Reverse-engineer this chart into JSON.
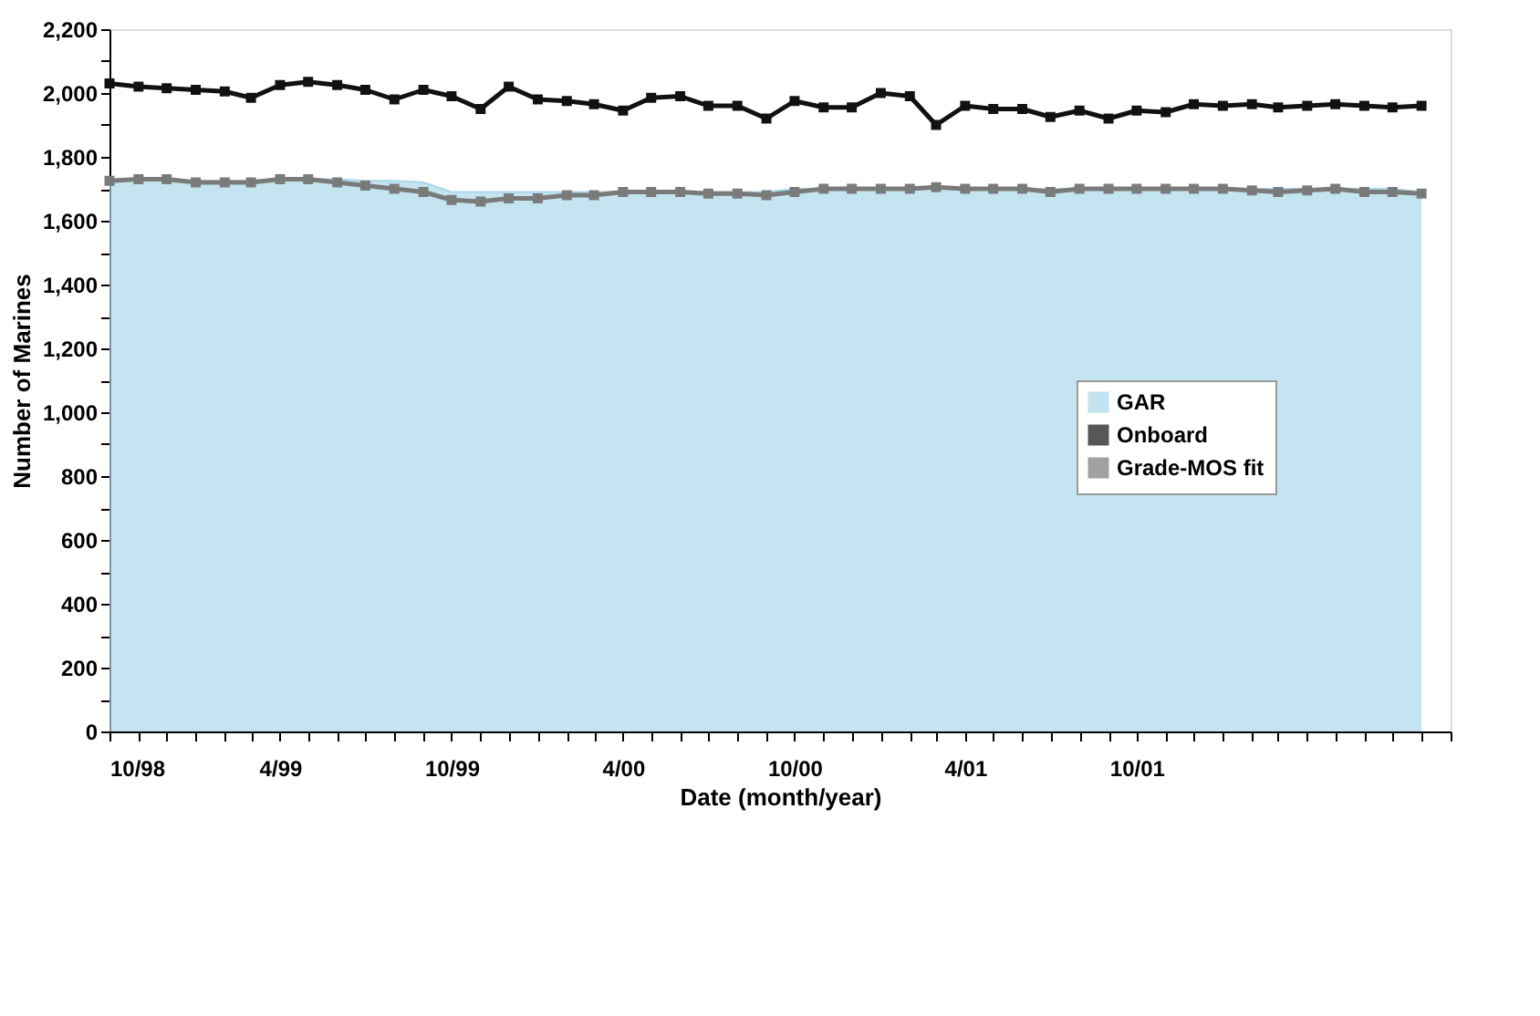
{
  "chart_data": {
    "type": "line",
    "xlabel": "Date (month/year)",
    "ylabel": "Number of Marines",
    "x": [
      "1998-10",
      "1998-11",
      "1998-12",
      "1999-01",
      "1999-02",
      "1999-03",
      "1999-04",
      "1999-05",
      "1999-06",
      "1999-07",
      "1999-08",
      "1999-09",
      "1999-10",
      "1999-11",
      "1999-12",
      "2000-01",
      "2000-02",
      "2000-03",
      "2000-04",
      "2000-05",
      "2000-06",
      "2000-07",
      "2000-08",
      "2000-09",
      "2000-10",
      "2000-11",
      "2000-12",
      "2001-01",
      "2001-02",
      "2001-03",
      "2001-04",
      "2001-05",
      "2001-06",
      "2001-07",
      "2001-08",
      "2001-09",
      "2001-10",
      "2001-11",
      "2001-12",
      "2002-01",
      "2002-02",
      "2002-03",
      "2002-04",
      "2002-05",
      "2002-06",
      "2002-07",
      "2002-08"
    ],
    "series": [
      {
        "name": "GAR",
        "type": "area",
        "color": "#a9d8ea",
        "values": [
          1720,
          1730,
          1730,
          1725,
          1725,
          1725,
          1730,
          1730,
          1730,
          1725,
          1725,
          1720,
          1690,
          1690,
          1690,
          1690,
          1690,
          1690,
          1690,
          1690,
          1690,
          1690,
          1690,
          1690,
          1700,
          1700,
          1700,
          1700,
          1700,
          1700,
          1700,
          1700,
          1700,
          1700,
          1700,
          1700,
          1700,
          1700,
          1700,
          1700,
          1700,
          1700,
          1700,
          1700,
          1700,
          1700,
          1690
        ]
      },
      {
        "name": "Onboard",
        "type": "line",
        "color": "#111111",
        "marker": "square",
        "values": [
          2030,
          2020,
          2015,
          2010,
          2005,
          1985,
          2025,
          2035,
          2025,
          2010,
          1980,
          2010,
          1990,
          1950,
          2020,
          1980,
          1975,
          1965,
          1945,
          1985,
          1990,
          1960,
          1960,
          1920,
          1975,
          1955,
          1955,
          2000,
          1990,
          1900,
          1960,
          1950,
          1950,
          1925,
          1945,
          1920,
          1945,
          1940,
          1965,
          1960,
          1965,
          1955,
          1960,
          1965,
          1960,
          1955,
          1960
        ]
      },
      {
        "name": "Grade-MOS fit",
        "type": "line",
        "color": "#7a7a7a",
        "marker": "square",
        "values": [
          1725,
          1730,
          1730,
          1720,
          1720,
          1720,
          1730,
          1730,
          1720,
          1710,
          1700,
          1690,
          1665,
          1660,
          1670,
          1670,
          1680,
          1680,
          1690,
          1690,
          1690,
          1685,
          1685,
          1680,
          1690,
          1700,
          1700,
          1700,
          1700,
          1705,
          1700,
          1700,
          1700,
          1690,
          1700,
          1700,
          1700,
          1700,
          1700,
          1700,
          1695,
          1690,
          1695,
          1700,
          1690,
          1690,
          1685
        ]
      }
    ],
    "xlim": [
      "1998-10",
      "2002-09"
    ],
    "xticks": [
      {
        "value": "1998-10",
        "label": "10/98"
      },
      {
        "value": "1998-11",
        "label": null
      },
      {
        "value": "1998-12",
        "label": null
      },
      {
        "value": "1999-01",
        "label": null
      },
      {
        "value": "1999-02",
        "label": null
      },
      {
        "value": "1999-03",
        "label": null
      },
      {
        "value": "1999-04",
        "label": "4/99"
      },
      {
        "value": "1999-05",
        "label": null
      },
      {
        "value": "1999-06",
        "label": null
      },
      {
        "value": "1999-07",
        "label": null
      },
      {
        "value": "1999-08",
        "label": null
      },
      {
        "value": "1999-09",
        "label": null
      },
      {
        "value": "1999-10",
        "label": "10/99"
      },
      {
        "value": "1999-11",
        "label": null
      },
      {
        "value": "1999-12",
        "label": null
      },
      {
        "value": "2000-01",
        "label": null
      },
      {
        "value": "2000-02",
        "label": null
      },
      {
        "value": "2000-03",
        "label": null
      },
      {
        "value": "2000-04",
        "label": "4/00"
      },
      {
        "value": "2000-05",
        "label": null
      },
      {
        "value": "2000-06",
        "label": null
      },
      {
        "value": "2000-07",
        "label": null
      },
      {
        "value": "2000-08",
        "label": null
      },
      {
        "value": "2000-09",
        "label": null
      },
      {
        "value": "2000-10",
        "label": "10/00"
      },
      {
        "value": "2000-11",
        "label": null
      },
      {
        "value": "2000-12",
        "label": null
      },
      {
        "value": "2001-01",
        "label": null
      },
      {
        "value": "2001-02",
        "label": null
      },
      {
        "value": "2001-03",
        "label": null
      },
      {
        "value": "2001-04",
        "label": "4/01"
      },
      {
        "value": "2001-05",
        "label": null
      },
      {
        "value": "2001-06",
        "label": null
      },
      {
        "value": "2001-07",
        "label": null
      },
      {
        "value": "2001-08",
        "label": null
      },
      {
        "value": "2001-09",
        "label": null
      },
      {
        "value": "2001-10",
        "label": "10/01"
      },
      {
        "value": "2001-11",
        "label": null
      },
      {
        "value": "2001-12",
        "label": null
      },
      {
        "value": "2002-01",
        "label": null
      },
      {
        "value": "2002-02",
        "label": null
      },
      {
        "value": "2002-03",
        "label": null
      },
      {
        "value": "2002-04",
        "label": null
      },
      {
        "value": "2002-05",
        "label": null
      },
      {
        "value": "2002-06",
        "label": null
      },
      {
        "value": "2002-07",
        "label": null
      },
      {
        "value": "2002-08",
        "label": null
      },
      {
        "value": "2002-09",
        "label": null
      }
    ],
    "ylim": [
      0,
      2200
    ],
    "yticks": [
      {
        "value": 0,
        "label": "0"
      },
      {
        "value": 100,
        "label": null
      },
      {
        "value": 200,
        "label": "200"
      },
      {
        "value": 300,
        "label": null
      },
      {
        "value": 400,
        "label": "400"
      },
      {
        "value": 500,
        "label": null
      },
      {
        "value": 600,
        "label": "600"
      },
      {
        "value": 700,
        "label": null
      },
      {
        "value": 800,
        "label": "800"
      },
      {
        "value": 900,
        "label": null
      },
      {
        "value": 1000,
        "label": "1,000"
      },
      {
        "value": 1100,
        "label": null
      },
      {
        "value": 1200,
        "label": "1,200"
      },
      {
        "value": 1300,
        "label": null
      },
      {
        "value": 1400,
        "label": "1,400"
      },
      {
        "value": 1500,
        "label": null
      },
      {
        "value": 1600,
        "label": "1,600"
      },
      {
        "value": 1700,
        "label": null
      },
      {
        "value": 1800,
        "label": "1,800"
      },
      {
        "value": 1900,
        "label": null
      },
      {
        "value": 2000,
        "label": "2,000"
      },
      {
        "value": 2100,
        "label": null
      },
      {
        "value": 2200,
        "label": "2,200"
      }
    ],
    "grid": false,
    "legend": "right"
  }
}
